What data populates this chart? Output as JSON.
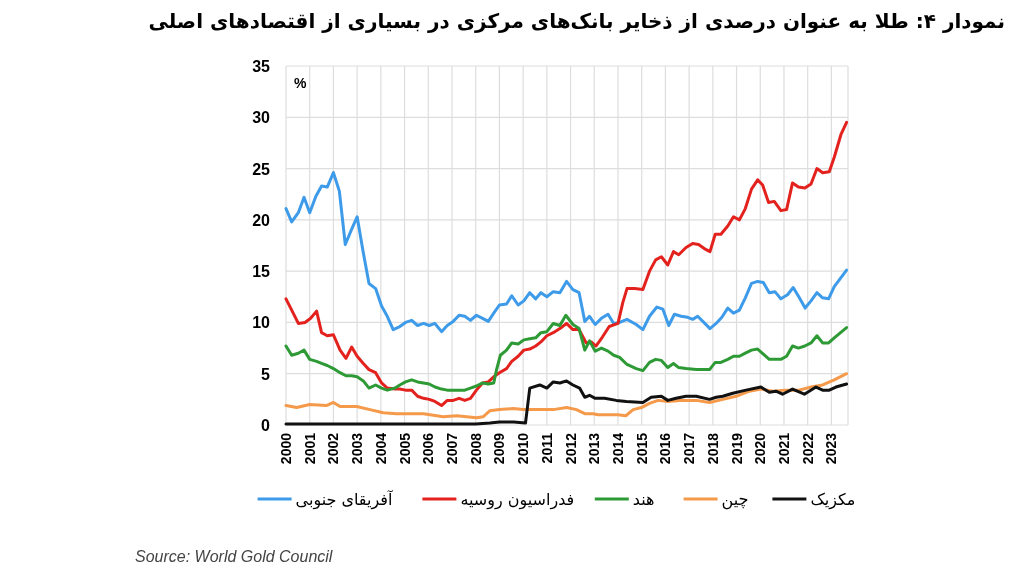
{
  "chart_data": {
    "type": "line",
    "title": "نمودار ۴: طلا به عنوان درصدی از ذخایر بانک‌های مرکزی در بسیاری از اقتصادهای اصلی",
    "ylabel": "%",
    "annotations": [
      "Source: World Gold Council"
    ],
    "xlim": [
      2000,
      2023.7
    ],
    "xticks": [
      2000,
      2001,
      2002,
      2003,
      2004,
      2005,
      2006,
      2007,
      2008,
      2009,
      2010,
      2011,
      2012,
      2013,
      2014,
      2015,
      2016,
      2017,
      2018,
      2019,
      2020,
      2021,
      2022,
      2023
    ],
    "ylim": [
      0,
      35
    ],
    "yticks": [
      0,
      5,
      10,
      15,
      20,
      25,
      30,
      35
    ],
    "grid": true,
    "legend": "bottom",
    "marker": "none",
    "line_style": "solid",
    "series": [
      {
        "name": "آفریقای جنوبی",
        "color": "#3d9be9",
        "x": [
          2000,
          2000.24,
          2000.52,
          2000.76,
          2001,
          2001.26,
          2001.5,
          2001.74,
          2002,
          2002.25,
          2002.5,
          2002.77,
          2003,
          2003.26,
          2003.5,
          2003.78,
          2004.03,
          2004.27,
          2004.52,
          2004.8,
          2005.04,
          2005.3,
          2005.55,
          2005.8,
          2006.04,
          2006.28,
          2006.56,
          2006.8,
          2007.05,
          2007.3,
          2007.54,
          2007.78,
          2008.03,
          2008.29,
          2008.53,
          2008.76,
          2009,
          2009.3,
          2009.52,
          2009.79,
          2010.03,
          2010.28,
          2010.53,
          2010.75,
          2011,
          2011.27,
          2011.55,
          2011.83,
          2012.1,
          2012.36,
          2012.6,
          2012.8,
          2013.04,
          2013.3,
          2013.58,
          2013.82,
          2014.07,
          2014.38,
          2014.77,
          2015.05,
          2015.33,
          2015.64,
          2015.89,
          2016.14,
          2016.38,
          2016.66,
          2016.94,
          2017.15,
          2017.36,
          2017.62,
          2017.88,
          2018.14,
          2018.38,
          2018.63,
          2018.87,
          2019.12,
          2019.37,
          2019.63,
          2019.89,
          2020.13,
          2020.38,
          2020.62,
          2020.87,
          2021.15,
          2021.39,
          2021.65,
          2021.89,
          2022.14,
          2022.39,
          2022.63,
          2022.88,
          2023.12,
          2023.64
        ],
        "values": [
          21.1,
          19.8,
          20.7,
          22.2,
          20.7,
          22.3,
          23.3,
          23.2,
          24.6,
          22.8,
          17.6,
          19.1,
          20.3,
          16.8,
          13.8,
          13.3,
          11.6,
          10.6,
          9.3,
          9.6,
          10,
          10.2,
          9.7,
          9.9,
          9.7,
          9.9,
          9.1,
          9.7,
          10.1,
          10.7,
          10.6,
          10.2,
          10.7,
          10.4,
          10.1,
          10.9,
          11.7,
          11.8,
          12.6,
          11.7,
          12.1,
          12.9,
          12.3,
          12.9,
          12.5,
          13,
          12.9,
          14,
          13.2,
          12.9,
          10.1,
          10.6,
          9.8,
          10.4,
          10.8,
          9.9,
          10,
          10.3,
          9.8,
          9.3,
          10.6,
          11.5,
          11.3,
          9.7,
          10.8,
          10.6,
          10.5,
          10.3,
          10.6,
          10,
          9.4,
          9.9,
          10.5,
          11.4,
          10.9,
          11.2,
          12.4,
          13.8,
          14,
          13.9,
          12.9,
          13,
          12.3,
          12.7,
          13.4,
          12.4,
          11.4,
          12.1,
          12.9,
          12.4,
          12.3,
          13.5,
          15.1
        ]
      },
      {
        "name": "فدراسیون روسیه",
        "color": "#e3221e",
        "x": [
          2000,
          2000.24,
          2000.52,
          2000.8,
          2001.04,
          2001.29,
          2001.5,
          2001.74,
          2002,
          2002.28,
          2002.53,
          2002.77,
          2003,
          2003.26,
          2003.5,
          2003.78,
          2004.03,
          2004.27,
          2004.6,
          2004.8,
          2005.04,
          2005.3,
          2005.55,
          2005.8,
          2006.04,
          2006.28,
          2006.56,
          2006.8,
          2007.05,
          2007.3,
          2007.54,
          2007.78,
          2008.03,
          2008.29,
          2008.53,
          2008.76,
          2009,
          2009.3,
          2009.52,
          2009.79,
          2010.03,
          2010.28,
          2010.53,
          2010.75,
          2011,
          2011.27,
          2011.55,
          2011.83,
          2012.1,
          2012.36,
          2012.66,
          2012.87,
          2013.07,
          2013.35,
          2013.63,
          2014,
          2014.2,
          2014.38,
          2014.7,
          2015.05,
          2015.33,
          2015.59,
          2015.83,
          2016.1,
          2016.34,
          2016.56,
          2016.87,
          2017.15,
          2017.4,
          2017.64,
          2017.88,
          2018.1,
          2018.34,
          2018.63,
          2018.87,
          2019.12,
          2019.37,
          2019.63,
          2019.89,
          2020.1,
          2020.35,
          2020.59,
          2020.87,
          2021.11,
          2021.36,
          2021.61,
          2021.88,
          2022.14,
          2022.39,
          2022.63,
          2022.91,
          2023.12,
          2023.4,
          2023.64
        ],
        "values": [
          12.3,
          11.2,
          9.9,
          10,
          10.4,
          11.1,
          9,
          8.7,
          8.8,
          7.3,
          6.5,
          7.6,
          6.7,
          6,
          5.4,
          5.1,
          4.1,
          3.6,
          3.5,
          3.5,
          3.4,
          3.4,
          2.8,
          2.6,
          2.5,
          2.3,
          1.9,
          2.4,
          2.4,
          2.6,
          2.4,
          2.6,
          3.4,
          4.1,
          4.2,
          4.7,
          5.1,
          5.5,
          6.2,
          6.7,
          7.3,
          7.4,
          7.7,
          8.1,
          8.7,
          9,
          9.4,
          9.9,
          9.3,
          9.3,
          8,
          8.1,
          7.7,
          8.6,
          9.6,
          9.9,
          11.9,
          13.3,
          13.3,
          13.2,
          15,
          16.1,
          16.4,
          15.6,
          16.9,
          16.6,
          17.3,
          17.7,
          17.6,
          17.2,
          16.9,
          18.6,
          18.6,
          19.4,
          20.3,
          20,
          21.1,
          23,
          23.9,
          23.4,
          21.7,
          21.8,
          20.9,
          21,
          23.6,
          23.2,
          23.1,
          23.5,
          25,
          24.6,
          24.7,
          26.1,
          28.3,
          29.5
        ]
      },
      {
        "name": "هند",
        "color": "#2e9a35",
        "x": [
          2000,
          2000.24,
          2000.52,
          2000.76,
          2001,
          2001.29,
          2001.5,
          2001.74,
          2002,
          2002.28,
          2002.53,
          2002.77,
          2003,
          2003.26,
          2003.5,
          2003.78,
          2004.03,
          2004.27,
          2004.6,
          2004.8,
          2005.04,
          2005.3,
          2005.55,
          2005.8,
          2006.04,
          2006.28,
          2006.56,
          2006.8,
          2007.05,
          2007.3,
          2007.54,
          2007.78,
          2008.03,
          2008.29,
          2008.53,
          2008.76,
          2008.88,
          2009.04,
          2009.3,
          2009.52,
          2009.79,
          2010.03,
          2010.28,
          2010.53,
          2010.75,
          2011,
          2011.27,
          2011.55,
          2011.8,
          2012.1,
          2012.36,
          2012.6,
          2012.8,
          2013.04,
          2013.3,
          2013.58,
          2013.82,
          2014.07,
          2014.38,
          2014.77,
          2015.05,
          2015.33,
          2015.59,
          2015.83,
          2016.1,
          2016.34,
          2016.56,
          2016.87,
          2017.3,
          2017.58,
          2017.86,
          2018.1,
          2018.34,
          2018.63,
          2018.87,
          2019.12,
          2019.37,
          2019.63,
          2019.89,
          2020.13,
          2020.38,
          2020.62,
          2020.87,
          2021.11,
          2021.36,
          2021.61,
          2021.88,
          2022.14,
          2022.39,
          2022.63,
          2022.88,
          2023.12,
          2023.64
        ],
        "values": [
          7.7,
          6.8,
          7,
          7.3,
          6.4,
          6.2,
          6,
          5.8,
          5.5,
          5.1,
          4.8,
          4.8,
          4.7,
          4.3,
          3.6,
          3.9,
          3.6,
          3.4,
          3.6,
          3.9,
          4.2,
          4.4,
          4.2,
          4.1,
          4,
          3.7,
          3.5,
          3.4,
          3.4,
          3.4,
          3.4,
          3.6,
          3.8,
          4.1,
          4,
          4.1,
          5.4,
          6.8,
          7.3,
          8,
          7.9,
          8.3,
          8.4,
          8.5,
          9,
          9.1,
          9.9,
          9.7,
          10.7,
          9.8,
          9.4,
          7.3,
          8.2,
          7.2,
          7.5,
          7.2,
          6.8,
          6.6,
          5.9,
          5.5,
          5.3,
          6.1,
          6.4,
          6.3,
          5.6,
          6,
          5.6,
          5.5,
          5.4,
          5.4,
          5.4,
          6.1,
          6.1,
          6.4,
          6.7,
          6.7,
          7,
          7.3,
          7.4,
          6.9,
          6.4,
          6.4,
          6.4,
          6.7,
          7.7,
          7.5,
          7.7,
          8,
          8.7,
          8,
          8,
          8.5,
          9.5
        ]
      },
      {
        "name": "چین",
        "color": "#f59a4a",
        "x": [
          2000,
          2000.45,
          2001,
          2001.7,
          2002,
          2002.28,
          2002.98,
          2003.54,
          2004.1,
          2004.66,
          2005.22,
          2005.8,
          2006.63,
          2007.2,
          2008.03,
          2008.31,
          2008.6,
          2009,
          2009.58,
          2010,
          2010.75,
          2011.27,
          2011.83,
          2012.25,
          2012.6,
          2012.95,
          2013.16,
          2014,
          2014.33,
          2014.64,
          2014.99,
          2015.33,
          2015.69,
          2016.1,
          2016.6,
          2017.3,
          2017.86,
          2018.42,
          2018.98,
          2019.54,
          2020.03,
          2020.52,
          2021.08,
          2021.64,
          2022.14,
          2022.63,
          2023.12,
          2023.64
        ],
        "values": [
          1.9,
          1.7,
          2,
          1.9,
          2.2,
          1.8,
          1.8,
          1.5,
          1.2,
          1.1,
          1.1,
          1.1,
          0.8,
          0.9,
          0.7,
          0.8,
          1.4,
          1.5,
          1.6,
          1.5,
          1.5,
          1.5,
          1.7,
          1.5,
          1.1,
          1.1,
          1,
          1,
          0.9,
          1.5,
          1.7,
          2.1,
          2.4,
          2.3,
          2.4,
          2.4,
          2.2,
          2.5,
          2.8,
          3.3,
          3.5,
          3.3,
          3.4,
          3.4,
          3.7,
          3.9,
          4.4,
          5
        ]
      },
      {
        "name": "مکزیک",
        "color": "#111111",
        "x": [
          2000,
          2002,
          2004,
          2006,
          2008,
          2008.6,
          2009,
          2009.6,
          2010.1,
          2010.28,
          2010.7,
          2011,
          2011.27,
          2011.55,
          2011.83,
          2012.1,
          2012.38,
          2012.6,
          2012.8,
          2013.04,
          2013.43,
          2013.93,
          2014.35,
          2015.05,
          2015.4,
          2015.83,
          2016.1,
          2016.45,
          2016.87,
          2017.3,
          2017.86,
          2018.14,
          2018.42,
          2018.84,
          2019.4,
          2020.03,
          2020.38,
          2020.66,
          2020.94,
          2021.36,
          2021.86,
          2022.35,
          2022.63,
          2022.91,
          2023.19,
          2023.64
        ],
        "values": [
          0.1,
          0.1,
          0.1,
          0.1,
          0.1,
          0.2,
          0.3,
          0.3,
          0.2,
          3.6,
          3.9,
          3.6,
          4.2,
          4.1,
          4.3,
          3.9,
          3.6,
          2.7,
          2.9,
          2.6,
          2.6,
          2.4,
          2.3,
          2.2,
          2.7,
          2.8,
          2.4,
          2.6,
          2.8,
          2.8,
          2.5,
          2.7,
          2.8,
          3.1,
          3.4,
          3.7,
          3.2,
          3.3,
          3,
          3.5,
          3,
          3.7,
          3.4,
          3.4,
          3.7,
          4
        ]
      }
    ]
  }
}
